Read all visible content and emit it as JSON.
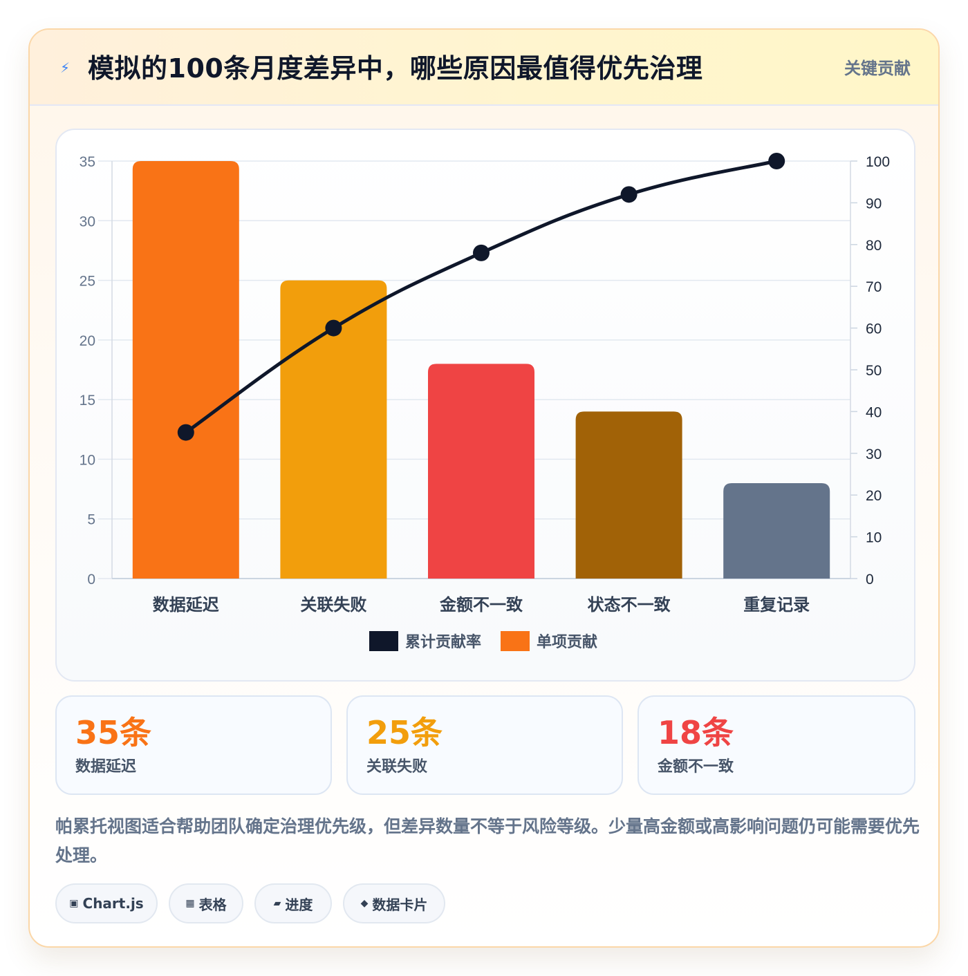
{
  "header": {
    "icon": "lightning-icon",
    "title": "模拟的100条月度差异中，哪些原因最值得优先治理",
    "badge": "关键贡献"
  },
  "chart_data": {
    "type": "bar",
    "categories": [
      "数据延迟",
      "关联失败",
      "金额不一致",
      "状态不一致",
      "重复记录"
    ],
    "series": [
      {
        "name": "单项贡献",
        "type": "bar",
        "axis": "left",
        "values": [
          35,
          25,
          18,
          14,
          8
        ],
        "colors": [
          "#f97316",
          "#f29e0c",
          "#ef4444",
          "#a16207",
          "#64748b"
        ]
      },
      {
        "name": "累计贡献率",
        "type": "line",
        "axis": "right",
        "values": [
          35,
          60,
          78,
          92,
          100
        ],
        "color": "#0f172a"
      }
    ],
    "y_left": {
      "min": 0,
      "max": 35,
      "ticks": [
        0,
        5,
        10,
        15,
        20,
        25,
        30,
        35
      ]
    },
    "y_right": {
      "min": 0,
      "max": 100,
      "ticks": [
        0,
        10,
        20,
        30,
        40,
        50,
        60,
        70,
        80,
        90,
        100
      ]
    },
    "grid": true,
    "legend": {
      "placement": "bottom",
      "items": [
        {
          "label": "累计贡献率",
          "color": "#0f172a"
        },
        {
          "label": "单项贡献",
          "color": "#f97316"
        }
      ]
    }
  },
  "kpis": [
    {
      "value": "35条",
      "label": "数据延迟",
      "color": "#f97316"
    },
    {
      "value": "25条",
      "label": "关联失败",
      "color": "#f29e0c"
    },
    {
      "value": "18条",
      "label": "金额不一致",
      "color": "#ef4444"
    }
  ],
  "note": "帕累托视图适合帮助团队确定治理优先级，但差异数量不等于风险等级。少量高金额或高影响问题仍可能需要优先处理。",
  "tags": [
    {
      "icon": "▣",
      "label": "Chart.js"
    },
    {
      "icon": "▦",
      "label": "表格"
    },
    {
      "icon": "▰",
      "label": "进度"
    },
    {
      "icon": "◆",
      "label": "数据卡片"
    }
  ]
}
